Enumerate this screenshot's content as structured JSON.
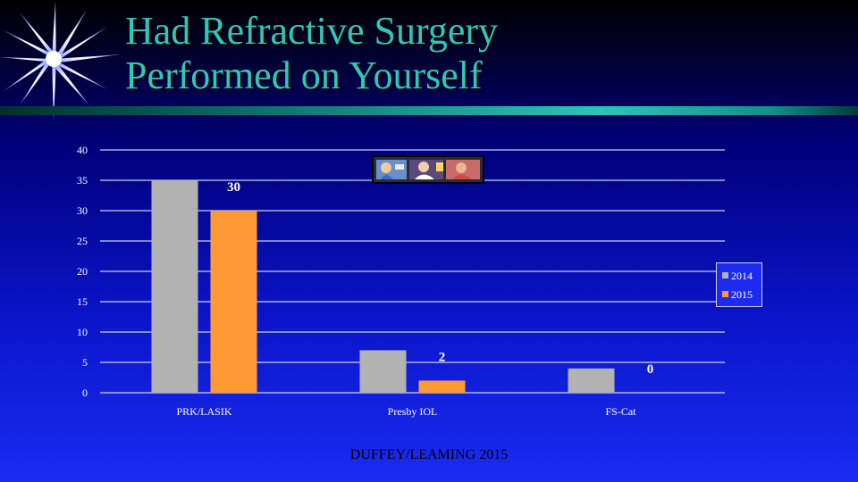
{
  "slide": {
    "title_line1": "Had Refractive Surgery",
    "title_line2": "Performed on Yourself",
    "footer": "DUFFEY/LEAMING 2015",
    "title_color": "#2fc8b8"
  },
  "chart_data": {
    "type": "bar",
    "categories": [
      "PRK/LASIK",
      "Presby IOL",
      "FS-Cat"
    ],
    "series": [
      {
        "name": "2014",
        "values": [
          35,
          7,
          4
        ],
        "color": "#b2b2b2"
      },
      {
        "name": "2015",
        "values": [
          30,
          2,
          0
        ],
        "color": "#ff9933",
        "data_labels": [
          "30",
          "2",
          "0"
        ]
      }
    ],
    "ylim": [
      0,
      40
    ],
    "yticks": [
      "0",
      "5",
      "10",
      "15",
      "20",
      "25",
      "30",
      "35",
      "40"
    ],
    "grid": true,
    "legend_position": "right",
    "title": "",
    "xlabel": "",
    "ylabel": ""
  }
}
